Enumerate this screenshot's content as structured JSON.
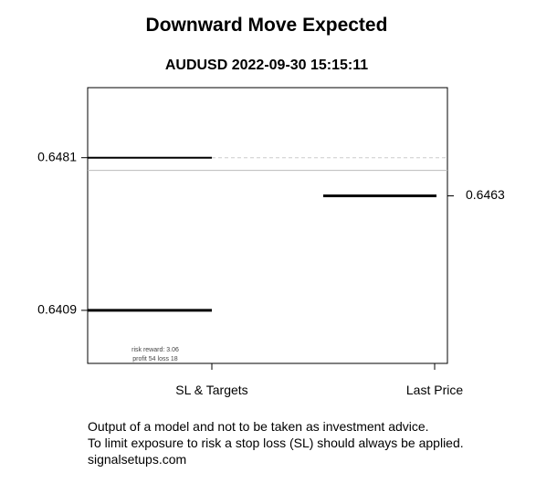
{
  "chart_data": {
    "type": "line",
    "title": "Downward Move Expected",
    "subtitle": "AUDUSD 2022-09-30 15:15:11",
    "categories": [
      "SL & Targets",
      "Last Price"
    ],
    "ylim": [
      0.6384,
      0.6514
    ],
    "reference_line": 0.6475,
    "stop_loss": 0.6481,
    "target": 0.6409,
    "last_price": 0.6463,
    "left_tick_labels": [
      "0.6481",
      "0.6409"
    ],
    "right_tick_labels": [
      "0.6463"
    ],
    "annotation": {
      "line1": "risk reward: 3.06",
      "line2": "profit 54  loss 18"
    },
    "grid": false,
    "colors": {
      "lines": "#000000",
      "reference": "#bbbbbb",
      "dashed": "#cccccc"
    }
  },
  "footer": {
    "line1": "Output of a model and not to be taken as investment advice.",
    "line2": "To limit exposure to risk a stop loss (SL) should always be applied.",
    "line3": "signalsetups.com"
  }
}
